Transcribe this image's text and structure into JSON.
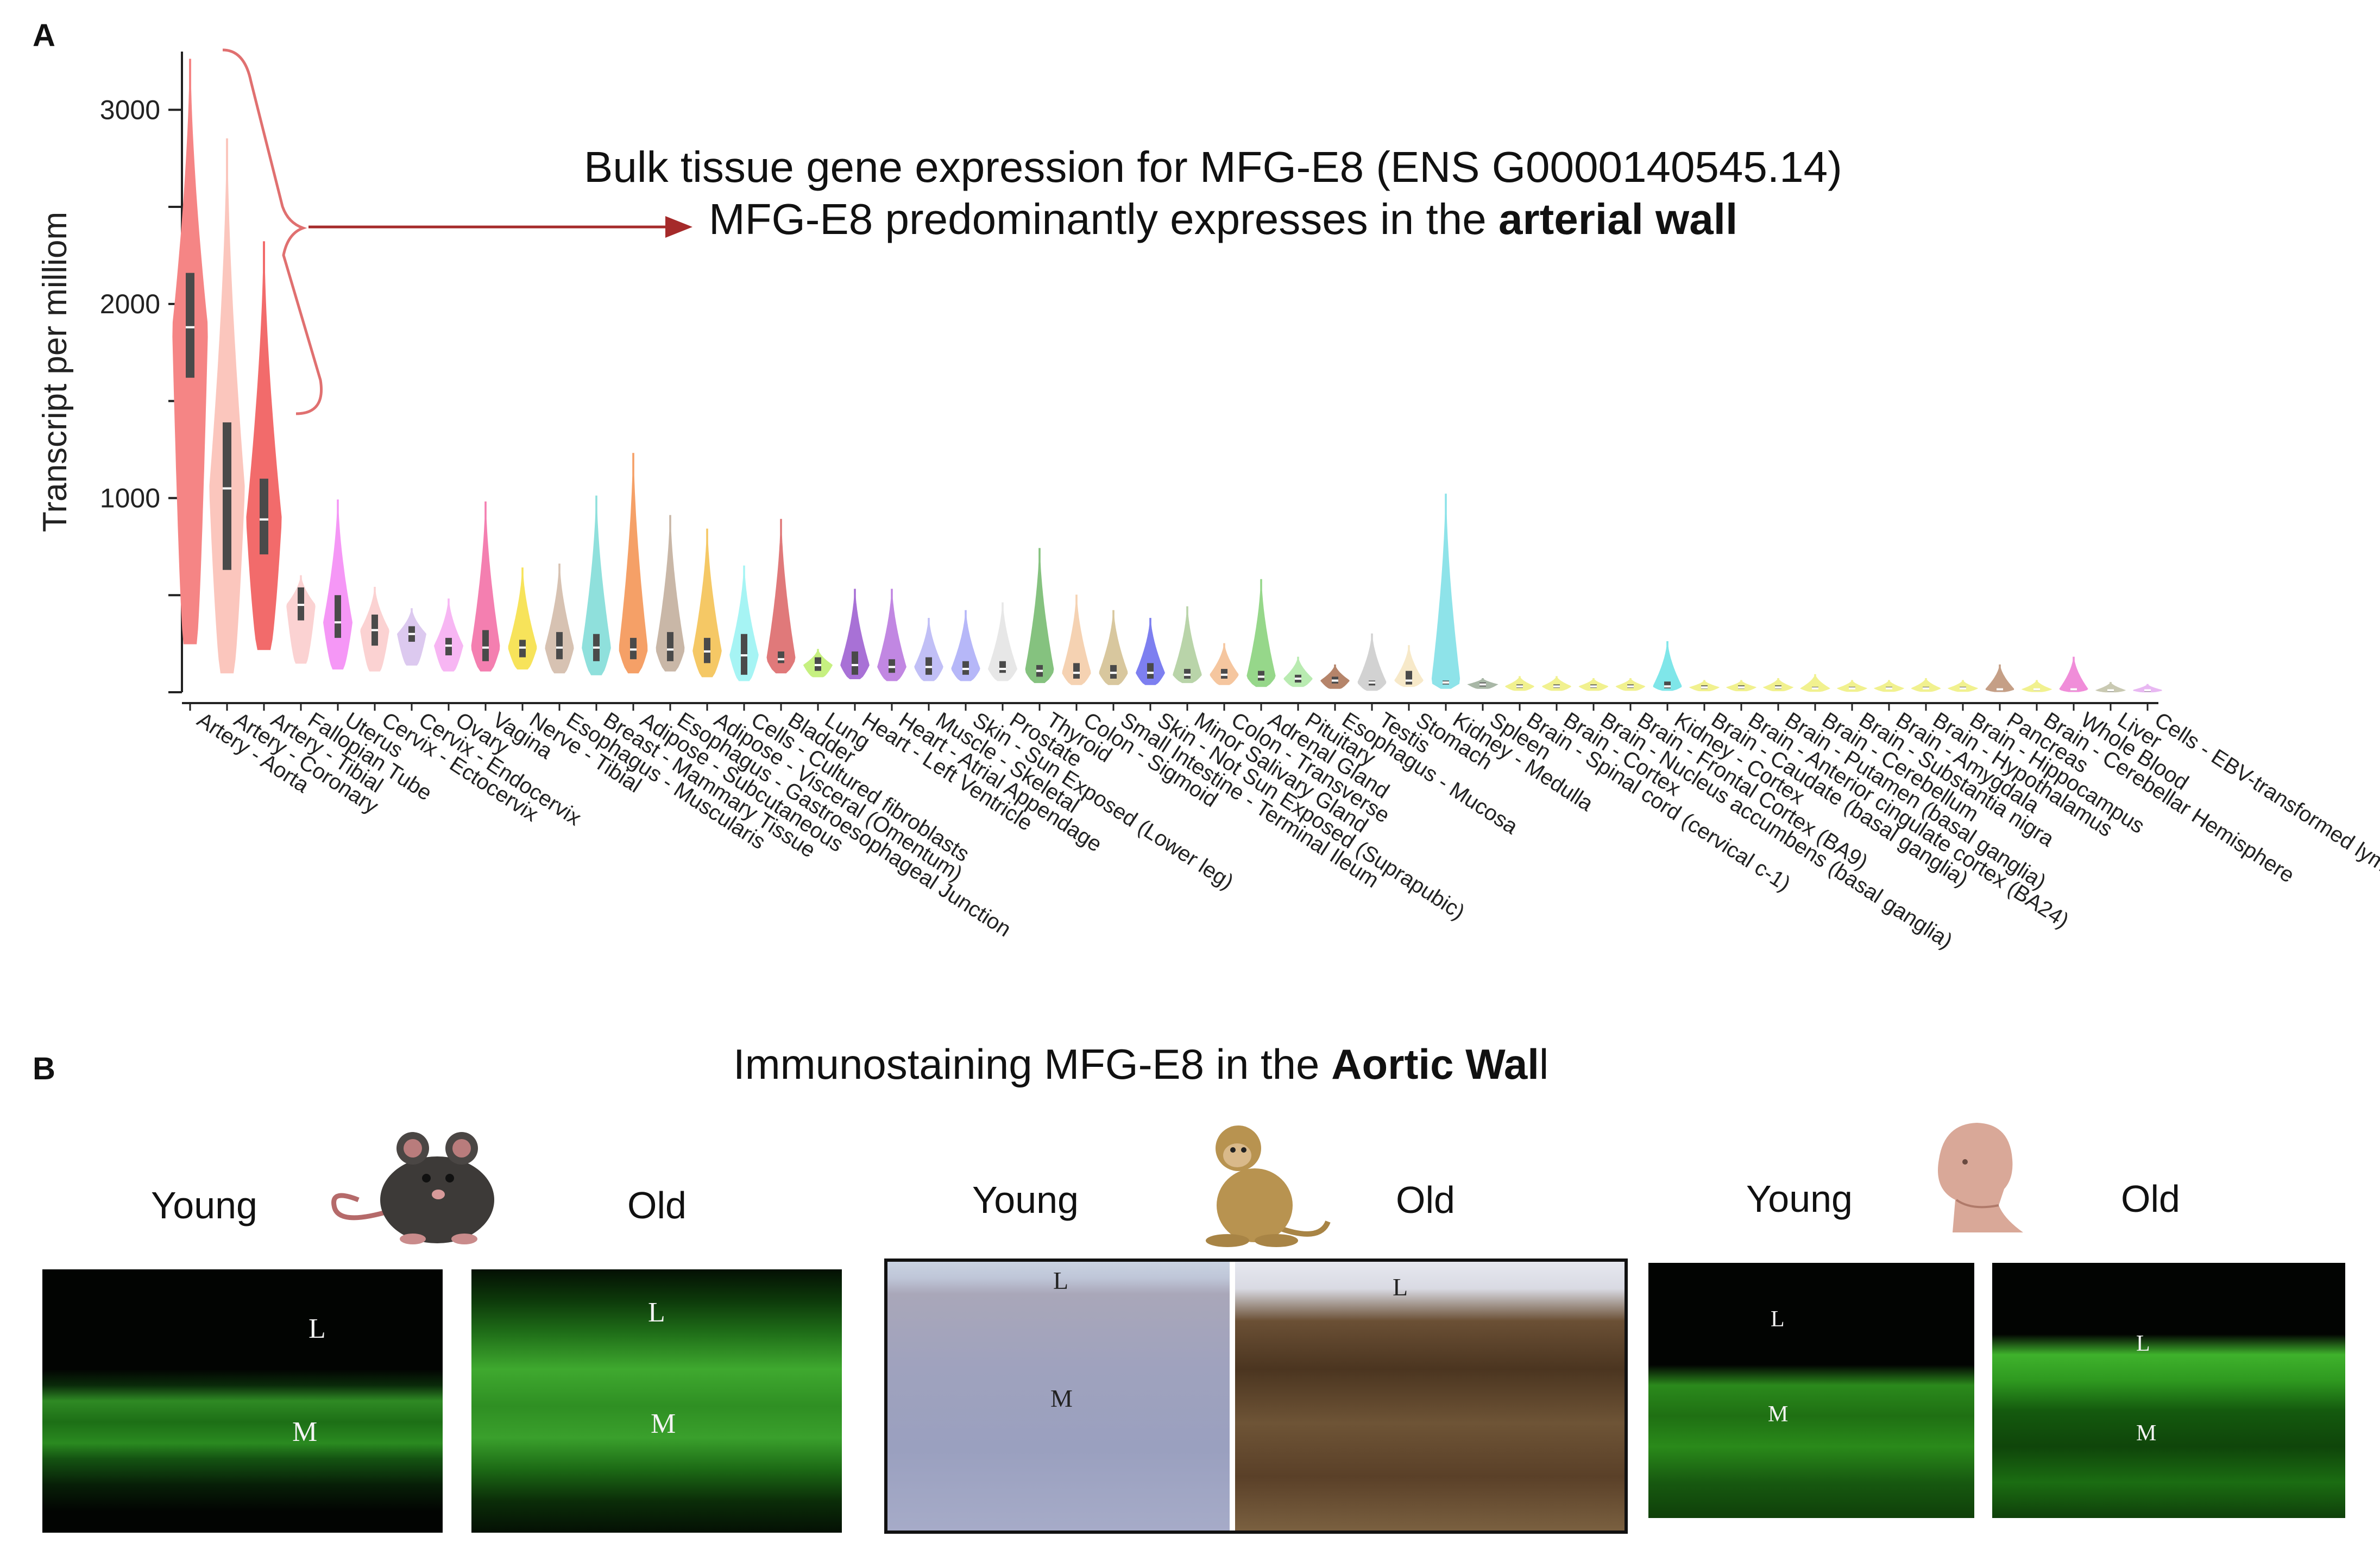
{
  "panel_a": {
    "label": "A",
    "annotation_line1": "Bulk tissue gene expression for MFG-E8 (ENS G0000140545.14)",
    "annotation_line2_prefix": "MFG-E8 predominantly expresses  in the ",
    "annotation_line2_bold": "arterial wall"
  },
  "chart_data": {
    "type": "violin",
    "ylabel": "Transcript  per milliom",
    "ylim": [
      0,
      3300
    ],
    "yticks": [
      1000,
      2000,
      3000
    ],
    "categories": [
      "Artery - Aorta",
      "Artery - Coronary",
      "Artery - Tibial",
      "Fallopian Tube",
      "Uterus",
      "Cervix - Ectocervix",
      "Cervix - Endocervix",
      "Ovary",
      "Vagina",
      "Nerve - Tibial",
      "Esophagus - Muscularis",
      "Breast - Mammary Tissue",
      "Adipose - Subcutaneous",
      "Esophagus - Gastroesophageal Junction",
      "Adipose - Visceral (Omentum)",
      "Cells - Cultured fibroblasts",
      "Bladder",
      "Lung",
      "Heart - Left Ventricle",
      "Heart - Atrial Appendage",
      "Muscle - Skeletal",
      "Skin - Sun Exposed (Lower leg)",
      "Prostate",
      "Thyroid",
      "Colon - Sigmoid",
      "Small Intestine - Terminal Ileum",
      "Skin - Not Sun Exposed (Suprapubic)",
      "Minor Salivary Gland",
      "Colon - Transverse",
      "Adrenal Gland",
      "Pituitary",
      "Esophagus - Mucosa",
      "Testis",
      "Stomach",
      "Kidney - Medulla",
      "Spleen",
      "Brain - Spinal cord (cervical c-1)",
      "Brain - Cortex",
      "Brain - Nucleus accumbens (basal ganglia)",
      "Brain - Frontal Cortex (BA9)",
      "Kidney - Cortex",
      "Brain - Caudate (basal ganglia)",
      "Brain - Anterior cingulate cortex (BA24)",
      "Brain - Putamen (basal ganglia)",
      "Brain - Cerebellum",
      "Brain - Substantia nigra",
      "Brain - Amygdala",
      "Brain - Hypothalamus",
      "Brain - Hippocampus",
      "Pancreas",
      "Brain - Cerebellar Hemisphere",
      "Whole Blood",
      "Liver",
      "Cells - EBV-transformed lymph."
    ],
    "median": [
      1880,
      1050,
      890,
      450,
      360,
      320,
      300,
      240,
      230,
      230,
      230,
      230,
      220,
      220,
      210,
      190,
      170,
      140,
      140,
      130,
      130,
      120,
      120,
      110,
      100,
      100,
      100,
      90,
      90,
      80,
      70,
      60,
      50,
      60,
      50,
      40,
      30,
      30,
      30,
      30,
      30,
      25,
      25,
      25,
      20,
      20,
      20,
      20,
      20,
      15,
      15,
      15,
      10,
      10
    ],
    "q1": [
      1620,
      630,
      710,
      370,
      280,
      240,
      260,
      190,
      160,
      180,
      170,
      160,
      170,
      160,
      150,
      90,
      150,
      110,
      90,
      100,
      90,
      90,
      100,
      80,
      70,
      70,
      70,
      70,
      70,
      60,
      50,
      45,
      35,
      40,
      40,
      30,
      22,
      22,
      22,
      22,
      20,
      18,
      18,
      18,
      15,
      15,
      15,
      15,
      15,
      10,
      10,
      10,
      8,
      8
    ],
    "q3": [
      2160,
      1390,
      1100,
      540,
      500,
      400,
      340,
      280,
      320,
      270,
      310,
      300,
      280,
      310,
      280,
      300,
      210,
      180,
      210,
      170,
      180,
      160,
      160,
      140,
      150,
      140,
      150,
      120,
      120,
      110,
      90,
      80,
      60,
      110,
      60,
      50,
      40,
      40,
      40,
      40,
      55,
      35,
      35,
      35,
      28,
      28,
      28,
      28,
      28,
      20,
      20,
      20,
      14,
      14
    ],
    "max": [
      3260,
      2850,
      2320,
      600,
      990,
      540,
      430,
      480,
      980,
      640,
      660,
      1010,
      1230,
      910,
      840,
      650,
      890,
      220,
      530,
      530,
      380,
      420,
      460,
      740,
      500,
      420,
      380,
      440,
      250,
      580,
      180,
      140,
      300,
      240,
      1020,
      70,
      80,
      80,
      70,
      70,
      260,
      60,
      60,
      70,
      90,
      60,
      60,
      70,
      60,
      140,
      60,
      180,
      50,
      40
    ],
    "min": [
      250,
      100,
      220,
      150,
      120,
      110,
      140,
      110,
      110,
      120,
      100,
      90,
      100,
      110,
      80,
      60,
      100,
      80,
      70,
      60,
      60,
      60,
      60,
      50,
      40,
      40,
      40,
      50,
      40,
      30,
      30,
      20,
      10,
      30,
      20,
      20,
      10,
      10,
      10,
      10,
      10,
      8,
      8,
      8,
      5,
      5,
      5,
      5,
      5,
      4,
      4,
      4,
      2,
      2
    ],
    "colors": [
      "#f58585",
      "#fbc6bd",
      "#f26b6b",
      "#fbd2d2",
      "#f597f6",
      "#fbd2d2",
      "#dcc9ef",
      "#f7b6f3",
      "#f47fb0",
      "#f7e35a",
      "#d7c2b2",
      "#8fe0dc",
      "#f5a067",
      "#c9b7a7",
      "#f5c865",
      "#a6f4f4",
      "#e0797a",
      "#c6f080",
      "#a871d6",
      "#c187e2",
      "#c1bff6",
      "#b6b7f8",
      "#e7e7e7",
      "#85c27f",
      "#f5d2b2",
      "#d8c79e",
      "#7d7ff0",
      "#b9d4a9",
      "#f5c69f",
      "#96d78a",
      "#b9ebb1",
      "#b5846a",
      "#d2d2d2",
      "#f7e9c9",
      "#8ee3e9",
      "#a8b7a6",
      "#f1f18f",
      "#f1f18f",
      "#f1f18f",
      "#f1f18f",
      "#7fe6e9",
      "#f1f18f",
      "#f1f18f",
      "#f1f18f",
      "#f1f18f",
      "#f1f18f",
      "#f1f18f",
      "#f1f18f",
      "#f1f18f",
      "#c59f86",
      "#f1f18f",
      "#f08dd9",
      "#c9c9b2",
      "#e8b8f2"
    ]
  },
  "panel_b": {
    "label": "B",
    "title_prefix": "Immunostaining MFG-E8 in  the ",
    "title_bold": "Aortic Wal",
    "title_suffix": "l",
    "groups": [
      {
        "young": "Young",
        "old": "Old",
        "icon": "mouse-icon",
        "young_L": "L",
        "young_M": "M",
        "old_L": "L",
        "old_M": "M"
      },
      {
        "young": "Young",
        "old": "Old",
        "icon": "monkey-icon",
        "young_L": "L",
        "young_M": "M",
        "old_L": "L"
      },
      {
        "young": "Young",
        "old": "Old",
        "icon": "human-head-icon",
        "young_L": "L",
        "young_M": "M",
        "old_L": "L",
        "old_M": "M"
      }
    ]
  }
}
